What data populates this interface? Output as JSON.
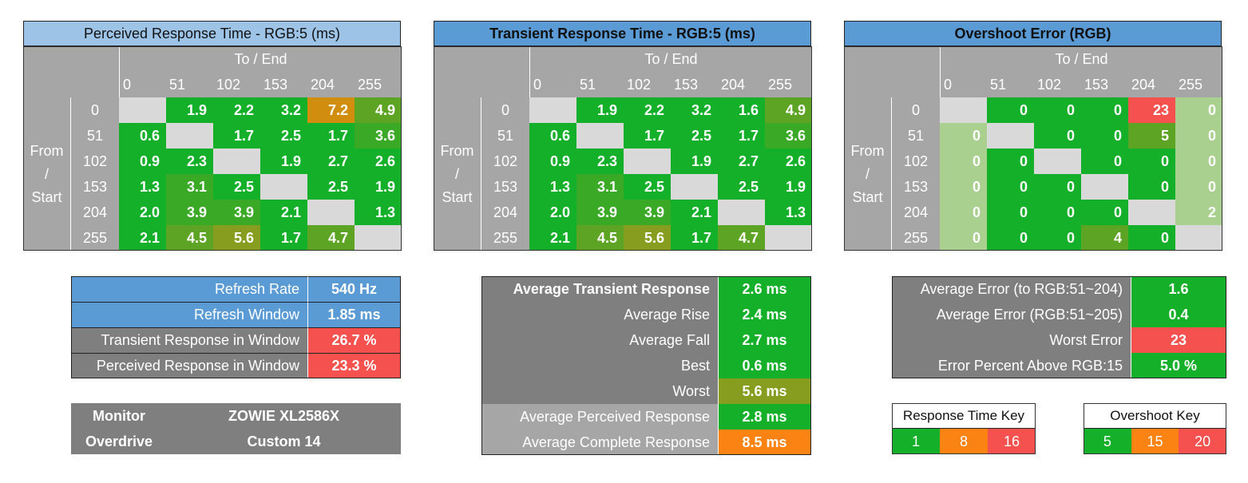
{
  "chart_data": [
    {
      "type": "heatmap",
      "title": "Perceived Response Time - RGB:5 (ms)",
      "header_bg": "#9dc3e6",
      "xlabel": "To / End",
      "ylabel": "From / Start",
      "levels": [
        "0",
        "51",
        "102",
        "153",
        "204",
        "255"
      ],
      "values": [
        [
          null,
          1.9,
          2.2,
          3.2,
          7.2,
          4.9
        ],
        [
          0.6,
          null,
          1.7,
          2.5,
          1.7,
          3.6
        ],
        [
          0.9,
          2.3,
          null,
          1.9,
          2.7,
          2.6
        ],
        [
          1.3,
          3.1,
          2.5,
          null,
          2.5,
          1.9
        ],
        [
          2.0,
          3.9,
          3.9,
          2.1,
          null,
          1.3
        ],
        [
          2.1,
          4.5,
          5.6,
          1.7,
          4.7,
          null
        ]
      ],
      "labels": [
        [
          "",
          "1.9",
          "2.2",
          "3.2",
          "7.2",
          "4.9"
        ],
        [
          "0.6",
          "",
          "1.7",
          "2.5",
          "1.7",
          "3.6"
        ],
        [
          "0.9",
          "2.3",
          "",
          "1.9",
          "2.7",
          "2.6"
        ],
        [
          "1.3",
          "3.1",
          "2.5",
          "",
          "2.5",
          "1.9"
        ],
        [
          "2.0",
          "3.9",
          "3.9",
          "2.1",
          "",
          "1.3"
        ],
        [
          "2.1",
          "4.5",
          "5.6",
          "1.7",
          "4.7",
          ""
        ]
      ],
      "colors": [
        [
          "#d9d9d9",
          "#15b02a",
          "#15b02a",
          "#15b02a",
          "#d18d0e",
          "#5ea424"
        ],
        [
          "#15b02a",
          "#d9d9d9",
          "#15b02a",
          "#15b02a",
          "#15b02a",
          "#3aaa26"
        ],
        [
          "#15b02a",
          "#15b02a",
          "#d9d9d9",
          "#15b02a",
          "#15b02a",
          "#15b02a"
        ],
        [
          "#15b02a",
          "#3aaa26",
          "#15b02a",
          "#d9d9d9",
          "#15b02a",
          "#15b02a"
        ],
        [
          "#15b02a",
          "#3aaa26",
          "#3aaa26",
          "#15b02a",
          "#d9d9d9",
          "#15b02a"
        ],
        [
          "#15b02a",
          "#5ea424",
          "#869d1f",
          "#15b02a",
          "#5ea424",
          "#d9d9d9"
        ]
      ]
    },
    {
      "type": "heatmap",
      "title": "Transient Response Time - RGB:5 (ms)",
      "header_bg": "#5b9bd5",
      "xlabel": "To / End",
      "ylabel": "From / Start",
      "levels": [
        "0",
        "51",
        "102",
        "153",
        "204",
        "255"
      ],
      "values": [
        [
          null,
          1.9,
          2.2,
          3.2,
          1.6,
          4.9
        ],
        [
          0.6,
          null,
          1.7,
          2.5,
          1.7,
          3.6
        ],
        [
          0.9,
          2.3,
          null,
          1.9,
          2.7,
          2.6
        ],
        [
          1.3,
          3.1,
          2.5,
          null,
          2.5,
          1.9
        ],
        [
          2.0,
          3.9,
          3.9,
          2.1,
          null,
          1.3
        ],
        [
          2.1,
          4.5,
          5.6,
          1.7,
          4.7,
          null
        ]
      ],
      "labels": [
        [
          "",
          "1.9",
          "2.2",
          "3.2",
          "1.6",
          "4.9"
        ],
        [
          "0.6",
          "",
          "1.7",
          "2.5",
          "1.7",
          "3.6"
        ],
        [
          "0.9",
          "2.3",
          "",
          "1.9",
          "2.7",
          "2.6"
        ],
        [
          "1.3",
          "3.1",
          "2.5",
          "",
          "2.5",
          "1.9"
        ],
        [
          "2.0",
          "3.9",
          "3.9",
          "2.1",
          "",
          "1.3"
        ],
        [
          "2.1",
          "4.5",
          "5.6",
          "1.7",
          "4.7",
          ""
        ]
      ],
      "colors": [
        [
          "#d9d9d9",
          "#15b02a",
          "#15b02a",
          "#15b02a",
          "#15b02a",
          "#5ea424"
        ],
        [
          "#15b02a",
          "#d9d9d9",
          "#15b02a",
          "#15b02a",
          "#15b02a",
          "#3aaa26"
        ],
        [
          "#15b02a",
          "#15b02a",
          "#d9d9d9",
          "#15b02a",
          "#15b02a",
          "#15b02a"
        ],
        [
          "#15b02a",
          "#3aaa26",
          "#15b02a",
          "#d9d9d9",
          "#15b02a",
          "#15b02a"
        ],
        [
          "#15b02a",
          "#3aaa26",
          "#3aaa26",
          "#15b02a",
          "#d9d9d9",
          "#15b02a"
        ],
        [
          "#15b02a",
          "#5ea424",
          "#869d1f",
          "#15b02a",
          "#5ea424",
          "#d9d9d9"
        ]
      ]
    },
    {
      "type": "heatmap",
      "title": "Overshoot Error (RGB)",
      "header_bg": "#5b9bd5",
      "xlabel": "To / End",
      "ylabel": "From / Start",
      "levels": [
        "0",
        "51",
        "102",
        "153",
        "204",
        "255"
      ],
      "values": [
        [
          null,
          0,
          0,
          0,
          23,
          0
        ],
        [
          0,
          null,
          0,
          0,
          5,
          0
        ],
        [
          0,
          0,
          null,
          0,
          0,
          0
        ],
        [
          0,
          0,
          0,
          null,
          0,
          0
        ],
        [
          0,
          0,
          0,
          0,
          null,
          2
        ],
        [
          0,
          0,
          0,
          4,
          0,
          null
        ]
      ],
      "labels": [
        [
          "",
          "0",
          "0",
          "0",
          "23",
          "0"
        ],
        [
          "0",
          "",
          "0",
          "0",
          "5",
          "0"
        ],
        [
          "0",
          "0",
          "",
          "0",
          "0",
          "0"
        ],
        [
          "0",
          "0",
          "0",
          "",
          "0",
          "0"
        ],
        [
          "0",
          "0",
          "0",
          "0",
          "",
          "2"
        ],
        [
          "0",
          "0",
          "0",
          "4",
          "0",
          ""
        ]
      ],
      "colors": [
        [
          "#d9d9d9",
          "#15b02a",
          "#15b02a",
          "#15b02a",
          "#f4514f",
          "#a9d08e"
        ],
        [
          "#a9d08e",
          "#d9d9d9",
          "#15b02a",
          "#15b02a",
          "#5ea424",
          "#a9d08e"
        ],
        [
          "#a9d08e",
          "#15b02a",
          "#d9d9d9",
          "#15b02a",
          "#15b02a",
          "#a9d08e"
        ],
        [
          "#a9d08e",
          "#15b02a",
          "#15b02a",
          "#d9d9d9",
          "#15b02a",
          "#a9d08e"
        ],
        [
          "#a9d08e",
          "#15b02a",
          "#15b02a",
          "#15b02a",
          "#d9d9d9",
          "#a9d08e"
        ],
        [
          "#a9d08e",
          "#15b02a",
          "#15b02a",
          "#5ea424",
          "#15b02a",
          "#d9d9d9"
        ]
      ]
    }
  ],
  "refresh_table": {
    "rows": [
      {
        "label": "Refresh Rate",
        "value": "540 Hz",
        "label_bg": "#5b9bd5",
        "value_bg": "#5b9bd5"
      },
      {
        "label": "Refresh Window",
        "value": "1.85 ms",
        "label_bg": "#5b9bd5",
        "value_bg": "#5b9bd5"
      },
      {
        "label": "Transient Response in Window",
        "value": "26.7 %",
        "label_bg": "#7f7f7f",
        "value_bg": "#f4514f"
      },
      {
        "label": "Perceived Response in Window",
        "value": "23.3 %",
        "label_bg": "#7f7f7f",
        "value_bg": "#f4514f"
      }
    ]
  },
  "monitor_table": {
    "rows": [
      {
        "label": "Monitor",
        "value": "ZOWIE XL2586X"
      },
      {
        "label": "Overdrive",
        "value": "Custom 14"
      }
    ],
    "bg": "#7f7f7f"
  },
  "averages_table": {
    "rows": [
      {
        "label": "Average Transient Response",
        "value": "2.6 ms",
        "bold": true,
        "label_bg": "#7f7f7f",
        "value_bg": "#15b02a"
      },
      {
        "label": "Average Rise",
        "value": "2.4 ms",
        "bold": false,
        "label_bg": "#7f7f7f",
        "value_bg": "#15b02a"
      },
      {
        "label": "Average Fall",
        "value": "2.7 ms",
        "bold": false,
        "label_bg": "#7f7f7f",
        "value_bg": "#15b02a"
      },
      {
        "label": "Best",
        "value": "0.6 ms",
        "bold": false,
        "label_bg": "#7f7f7f",
        "value_bg": "#15b02a"
      },
      {
        "label": "Worst",
        "value": "5.6 ms",
        "bold": false,
        "label_bg": "#7f7f7f",
        "value_bg": "#869d1f"
      },
      {
        "label": "Average Perceived Response",
        "value": "2.8 ms",
        "bold": false,
        "label_bg": "#a6a6a6",
        "value_bg": "#15b02a"
      },
      {
        "label": "Average Complete Response",
        "value": "8.5 ms",
        "bold": false,
        "label_bg": "#a6a6a6",
        "value_bg": "#fa8313"
      }
    ]
  },
  "error_table": {
    "rows": [
      {
        "label": "Average Error (to RGB:51~204)",
        "value": "1.6",
        "value_bg": "#15b02a"
      },
      {
        "label": "Average Error (RGB:51~205)",
        "value": "0.4",
        "value_bg": "#15b02a"
      },
      {
        "label": "Worst Error",
        "value": "23",
        "value_bg": "#f4514f"
      },
      {
        "label": "Error Percent Above RGB:15",
        "value": "5.0 %",
        "value_bg": "#15b02a"
      }
    ],
    "label_bg": "#7f7f7f"
  },
  "response_key": {
    "title": "Response Time Key",
    "items": [
      {
        "value": "1",
        "color": "#15b02a"
      },
      {
        "value": "8",
        "color": "#fa8313"
      },
      {
        "value": "16",
        "color": "#f4514f"
      }
    ]
  },
  "overshoot_key": {
    "title": "Overshoot Key",
    "items": [
      {
        "value": "5",
        "color": "#15b02a"
      },
      {
        "value": "15",
        "color": "#fa8313"
      },
      {
        "value": "20",
        "color": "#f4514f"
      }
    ]
  }
}
